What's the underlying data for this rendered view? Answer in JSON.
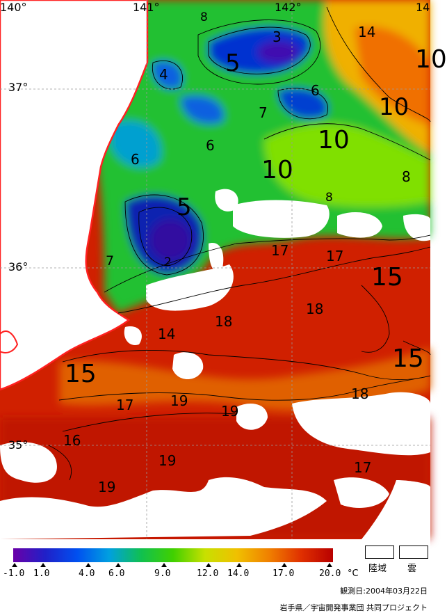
{
  "map": {
    "longitude_labels": [
      "140°",
      "141°",
      "142°",
      "14"
    ],
    "latitude_labels": [
      "37°",
      "36°",
      "35°"
    ],
    "contour_labels": [
      {
        "text": "8"
      },
      {
        "text": "3"
      },
      {
        "text": "5"
      },
      {
        "text": "14"
      },
      {
        "text": "10"
      },
      {
        "text": "4"
      },
      {
        "text": "6"
      },
      {
        "text": "10"
      },
      {
        "text": "7"
      },
      {
        "text": "6"
      },
      {
        "text": "10"
      },
      {
        "text": "10"
      },
      {
        "text": "6"
      },
      {
        "text": "8"
      },
      {
        "text": "5"
      },
      {
        "text": "8"
      },
      {
        "text": "7"
      },
      {
        "text": "2"
      },
      {
        "text": "17"
      },
      {
        "text": "17"
      },
      {
        "text": "15"
      },
      {
        "text": "18"
      },
      {
        "text": "18"
      },
      {
        "text": "14"
      },
      {
        "text": "15"
      },
      {
        "text": "15"
      },
      {
        "text": "17"
      },
      {
        "text": "19"
      },
      {
        "text": "19"
      },
      {
        "text": "18"
      },
      {
        "text": "16"
      },
      {
        "text": "19"
      },
      {
        "text": "17"
      },
      {
        "text": "19"
      }
    ]
  },
  "legend": {
    "colorbar_colors": [
      "#6a00a8",
      "#2020c8",
      "#0050f0",
      "#00a0e0",
      "#10c050",
      "#40d000",
      "#c8e000",
      "#f0c000",
      "#f08000",
      "#e03000",
      "#b80000"
    ],
    "ticks": [
      "-1.0",
      "1.0",
      "4.0",
      "6.0",
      "9.0",
      "12.0",
      "14.0",
      "17.0",
      "20.0"
    ],
    "unit": "°C",
    "land_label": "陸域",
    "cloud_label": "雲",
    "observation_date": "観測日:2004年03月22日",
    "credit": "岩手県／宇宙開発事業団 共同プロジェクト"
  }
}
